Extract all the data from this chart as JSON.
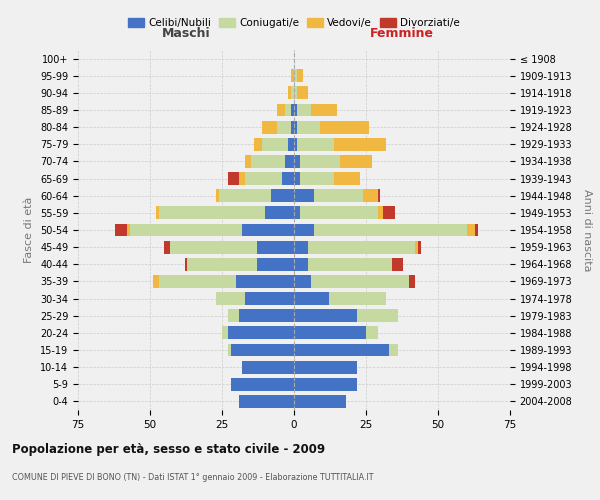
{
  "age_groups": [
    "0-4",
    "5-9",
    "10-14",
    "15-19",
    "20-24",
    "25-29",
    "30-34",
    "35-39",
    "40-44",
    "45-49",
    "50-54",
    "55-59",
    "60-64",
    "65-69",
    "70-74",
    "75-79",
    "80-84",
    "85-89",
    "90-94",
    "95-99",
    "100+"
  ],
  "birth_years": [
    "2004-2008",
    "1999-2003",
    "1994-1998",
    "1989-1993",
    "1984-1988",
    "1979-1983",
    "1974-1978",
    "1969-1973",
    "1964-1968",
    "1959-1963",
    "1954-1958",
    "1949-1953",
    "1944-1948",
    "1939-1943",
    "1934-1938",
    "1929-1933",
    "1924-1928",
    "1919-1923",
    "1914-1918",
    "1909-1913",
    "≤ 1908"
  ],
  "colors": {
    "celibi": "#4472c4",
    "coniugati": "#c5d9a0",
    "vedovi": "#f0b840",
    "divorziati": "#c0392b"
  },
  "maschi": {
    "celibi": [
      19,
      22,
      18,
      22,
      23,
      19,
      17,
      20,
      13,
      13,
      18,
      10,
      8,
      4,
      3,
      2,
      1,
      1,
      0,
      0,
      0
    ],
    "coniugati": [
      0,
      0,
      0,
      1,
      2,
      4,
      10,
      27,
      24,
      30,
      39,
      37,
      18,
      13,
      12,
      9,
      5,
      2,
      1,
      0,
      0
    ],
    "vedovi": [
      0,
      0,
      0,
      0,
      0,
      0,
      0,
      2,
      0,
      0,
      1,
      1,
      1,
      2,
      2,
      3,
      5,
      3,
      1,
      1,
      0
    ],
    "divorziati": [
      0,
      0,
      0,
      0,
      0,
      0,
      0,
      0,
      1,
      2,
      4,
      0,
      0,
      4,
      0,
      0,
      0,
      0,
      0,
      0,
      0
    ]
  },
  "femmine": {
    "nubili": [
      18,
      22,
      22,
      33,
      25,
      22,
      12,
      6,
      5,
      5,
      7,
      2,
      7,
      2,
      2,
      1,
      1,
      1,
      0,
      0,
      0
    ],
    "coniugate": [
      0,
      0,
      0,
      3,
      4,
      14,
      20,
      34,
      29,
      37,
      53,
      27,
      17,
      12,
      14,
      13,
      8,
      5,
      1,
      1,
      0
    ],
    "vedove": [
      0,
      0,
      0,
      0,
      0,
      0,
      0,
      0,
      0,
      1,
      3,
      2,
      5,
      9,
      11,
      18,
      17,
      9,
      4,
      2,
      0
    ],
    "divorziate": [
      0,
      0,
      0,
      0,
      0,
      0,
      0,
      2,
      4,
      1,
      1,
      4,
      1,
      0,
      0,
      0,
      0,
      0,
      0,
      0,
      0
    ]
  },
  "title": "Popolazione per età, sesso e stato civile - 2009",
  "subtitle": "COMUNE DI PIEVE DI BONO (TN) - Dati ISTAT 1° gennaio 2009 - Elaborazione TUTTITALIA.IT",
  "ylabel_left": "Fasce di età",
  "ylabel_right": "Anni di nascita",
  "xlim": 75,
  "legend_labels": [
    "Celibi/Nubili",
    "Coniugati/e",
    "Vedovi/e",
    "Divorziati/e"
  ],
  "maschi_label": "Maschi",
  "femmine_label": "Femmine",
  "background_color": "#f0f0f0",
  "grid_color": "#cccccc"
}
